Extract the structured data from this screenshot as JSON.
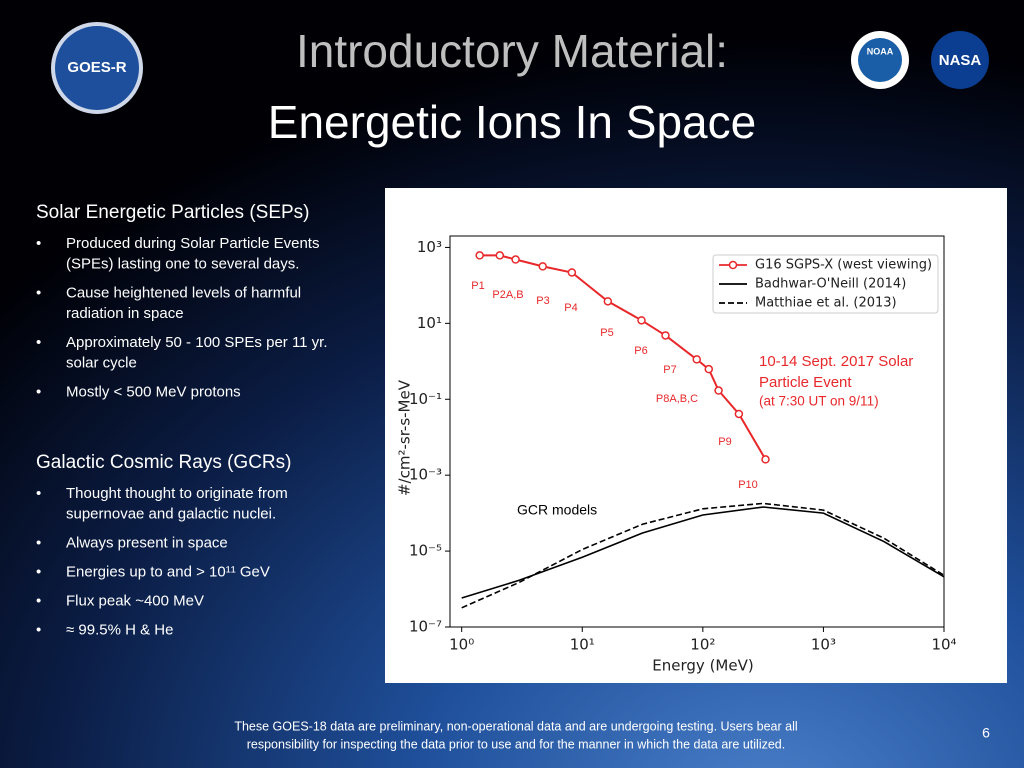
{
  "header": {
    "title": "Introductory Material:",
    "subtitle": "Energetic Ions In Space",
    "logos": [
      "GOES-R",
      "NOAA",
      "NASA"
    ]
  },
  "sections": [
    {
      "heading": "Solar Energetic Particles (SEPs)",
      "bullets": [
        [
          "Produced during Solar Particle Events",
          "(SPEs) lasting one to several days."
        ],
        [
          "Cause heightened levels of harmful",
          "radiation in space"
        ],
        [
          "Approximately 50 - 100 SPEs per 11 yr.",
          "solar cycle"
        ],
        [
          "Mostly < 500 MeV protons"
        ]
      ]
    },
    {
      "heading": "Galactic Cosmic Rays (GCRs)",
      "bullets": [
        [
          "Thought thought to originate from",
          "supernovae and galactic nuclei."
        ],
        [
          "Always present in space"
        ],
        [
          "Energies up to and > 10¹¹ GeV"
        ],
        [
          "Flux peak ~400 MeV"
        ],
        [
          "≈ 99.5% H & He"
        ]
      ]
    }
  ],
  "chart_data": {
    "type": "line",
    "xlabel": "Energy (MeV)",
    "ylabel": "#/cm²-sr-s-MeV",
    "xscale": "log",
    "yscale": "log",
    "xlim": [
      0.8,
      10000
    ],
    "ylim": [
      1e-07,
      2000
    ],
    "xticks": [
      {
        "value": 1,
        "label": "10⁰"
      },
      {
        "value": 10,
        "label": "10¹"
      },
      {
        "value": 100,
        "label": "10²"
      },
      {
        "value": 1000,
        "label": "10³"
      },
      {
        "value": 10000,
        "label": "10⁴"
      }
    ],
    "yticks": [
      {
        "value": 1e-07,
        "label": "10⁻⁷"
      },
      {
        "value": 1e-05,
        "label": "10⁻⁵"
      },
      {
        "value": 0.001,
        "label": "10⁻³"
      },
      {
        "value": 0.1,
        "label": "10⁻¹"
      },
      {
        "value": 10,
        "label": "10¹"
      },
      {
        "value": 1000,
        "label": "10³"
      }
    ],
    "legend": "upper right",
    "series": [
      {
        "name": "G16 SGPS-X (west viewing)",
        "color": "#e8282b",
        "linestyle": "solid",
        "marker": "o",
        "x": [
          1.41,
          2.07,
          2.8,
          4.7,
          8.2,
          16.3,
          31,
          49,
          89,
          112,
          135,
          199,
          331
        ],
        "values": [
          616,
          616,
          480,
          316,
          219,
          38,
          12,
          4.8,
          1.12,
          0.62,
          0.17,
          0.041,
          0.0026
        ]
      },
      {
        "name": "Badhwar-O'Neill (2014)",
        "color": "#000000",
        "linestyle": "solid",
        "x": [
          1,
          3,
          10,
          31.6,
          100,
          316,
          1000,
          3162,
          10000
        ],
        "values": [
          5.8e-07,
          1.7e-06,
          6.9e-06,
          3e-05,
          8.9e-05,
          0.000145,
          0.0001,
          1.8e-05,
          2.1e-06
        ]
      },
      {
        "name": "Matthiae et al. (2013)",
        "color": "#000000",
        "linestyle": "dashed",
        "x": [
          1,
          3,
          10,
          31.6,
          100,
          316,
          1000,
          3162,
          10000
        ],
        "values": [
          3.2e-07,
          1.5e-06,
          1.1e-05,
          5.1e-05,
          0.00013,
          0.00018,
          0.00012,
          2.2e-05,
          2.3e-06
        ]
      }
    ],
    "point_labels": [
      "P1",
      "P2A,B",
      "P3",
      "P4",
      "P5",
      "P6",
      "P7",
      "P8A,B,C",
      "P9",
      "P10"
    ],
    "event_note": [
      "10-14 Sept. 2017 Solar",
      "Particle Event",
      "(at 7:30 UT on 9/11)"
    ],
    "gcr_label": "GCR models"
  },
  "footer": {
    "note": [
      "These GOES-18 data are preliminary, non-operational data and are undergoing testing. Users bear all",
      "responsibility for inspecting the data prior to use and for the manner in which the data are utilized."
    ],
    "page": "6"
  }
}
